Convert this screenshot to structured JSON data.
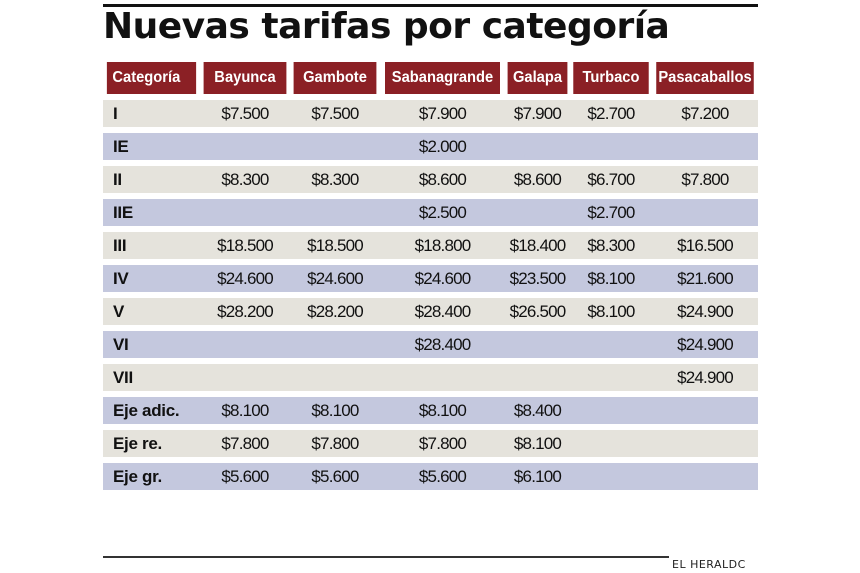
{
  "title": "Nuevas tarifas por categoría",
  "credit": "EL HERALDC",
  "colors": {
    "header_bg": "#8b2025",
    "row_odd": "#e5e3dc",
    "row_even": "#c4c8de"
  },
  "table": {
    "headers": [
      "Categoría",
      "Bayunca",
      "Gambote",
      "Sabanagrande",
      "Galapa",
      "Turbaco",
      "Pasacaballos"
    ],
    "rows": [
      [
        "I",
        "$7.500",
        "$7.500",
        "$7.900",
        "$7.900",
        "$2.700",
        "$7.200"
      ],
      [
        "IE",
        "",
        "",
        "$2.000",
        "",
        "",
        ""
      ],
      [
        "II",
        "$8.300",
        "$8.300",
        "$8.600",
        "$8.600",
        "$6.700",
        "$7.800"
      ],
      [
        "IIE",
        "",
        "",
        "$2.500",
        "",
        "$2.700",
        ""
      ],
      [
        "III",
        "$18.500",
        "$18.500",
        "$18.800",
        "$18.400",
        "$8.300",
        "$16.500"
      ],
      [
        "IV",
        "$24.600",
        "$24.600",
        "$24.600",
        "$23.500",
        "$8.100",
        "$21.600"
      ],
      [
        "V",
        "$28.200",
        "$28.200",
        "$28.400",
        "$26.500",
        "$8.100",
        "$24.900"
      ],
      [
        "VI",
        "",
        "",
        "$28.400",
        "",
        "",
        "$24.900"
      ],
      [
        "VII",
        "",
        "",
        "",
        "",
        "",
        "$24.900"
      ],
      [
        "Eje adic.",
        "$8.100",
        "$8.100",
        "$8.100",
        "$8.400",
        "",
        ""
      ],
      [
        "Eje re.",
        "$7.800",
        "$7.800",
        "$7.800",
        "$8.100",
        "",
        ""
      ],
      [
        "Eje gr.",
        "$5.600",
        "$5.600",
        "$5.600",
        "$6.100",
        "",
        ""
      ]
    ]
  }
}
